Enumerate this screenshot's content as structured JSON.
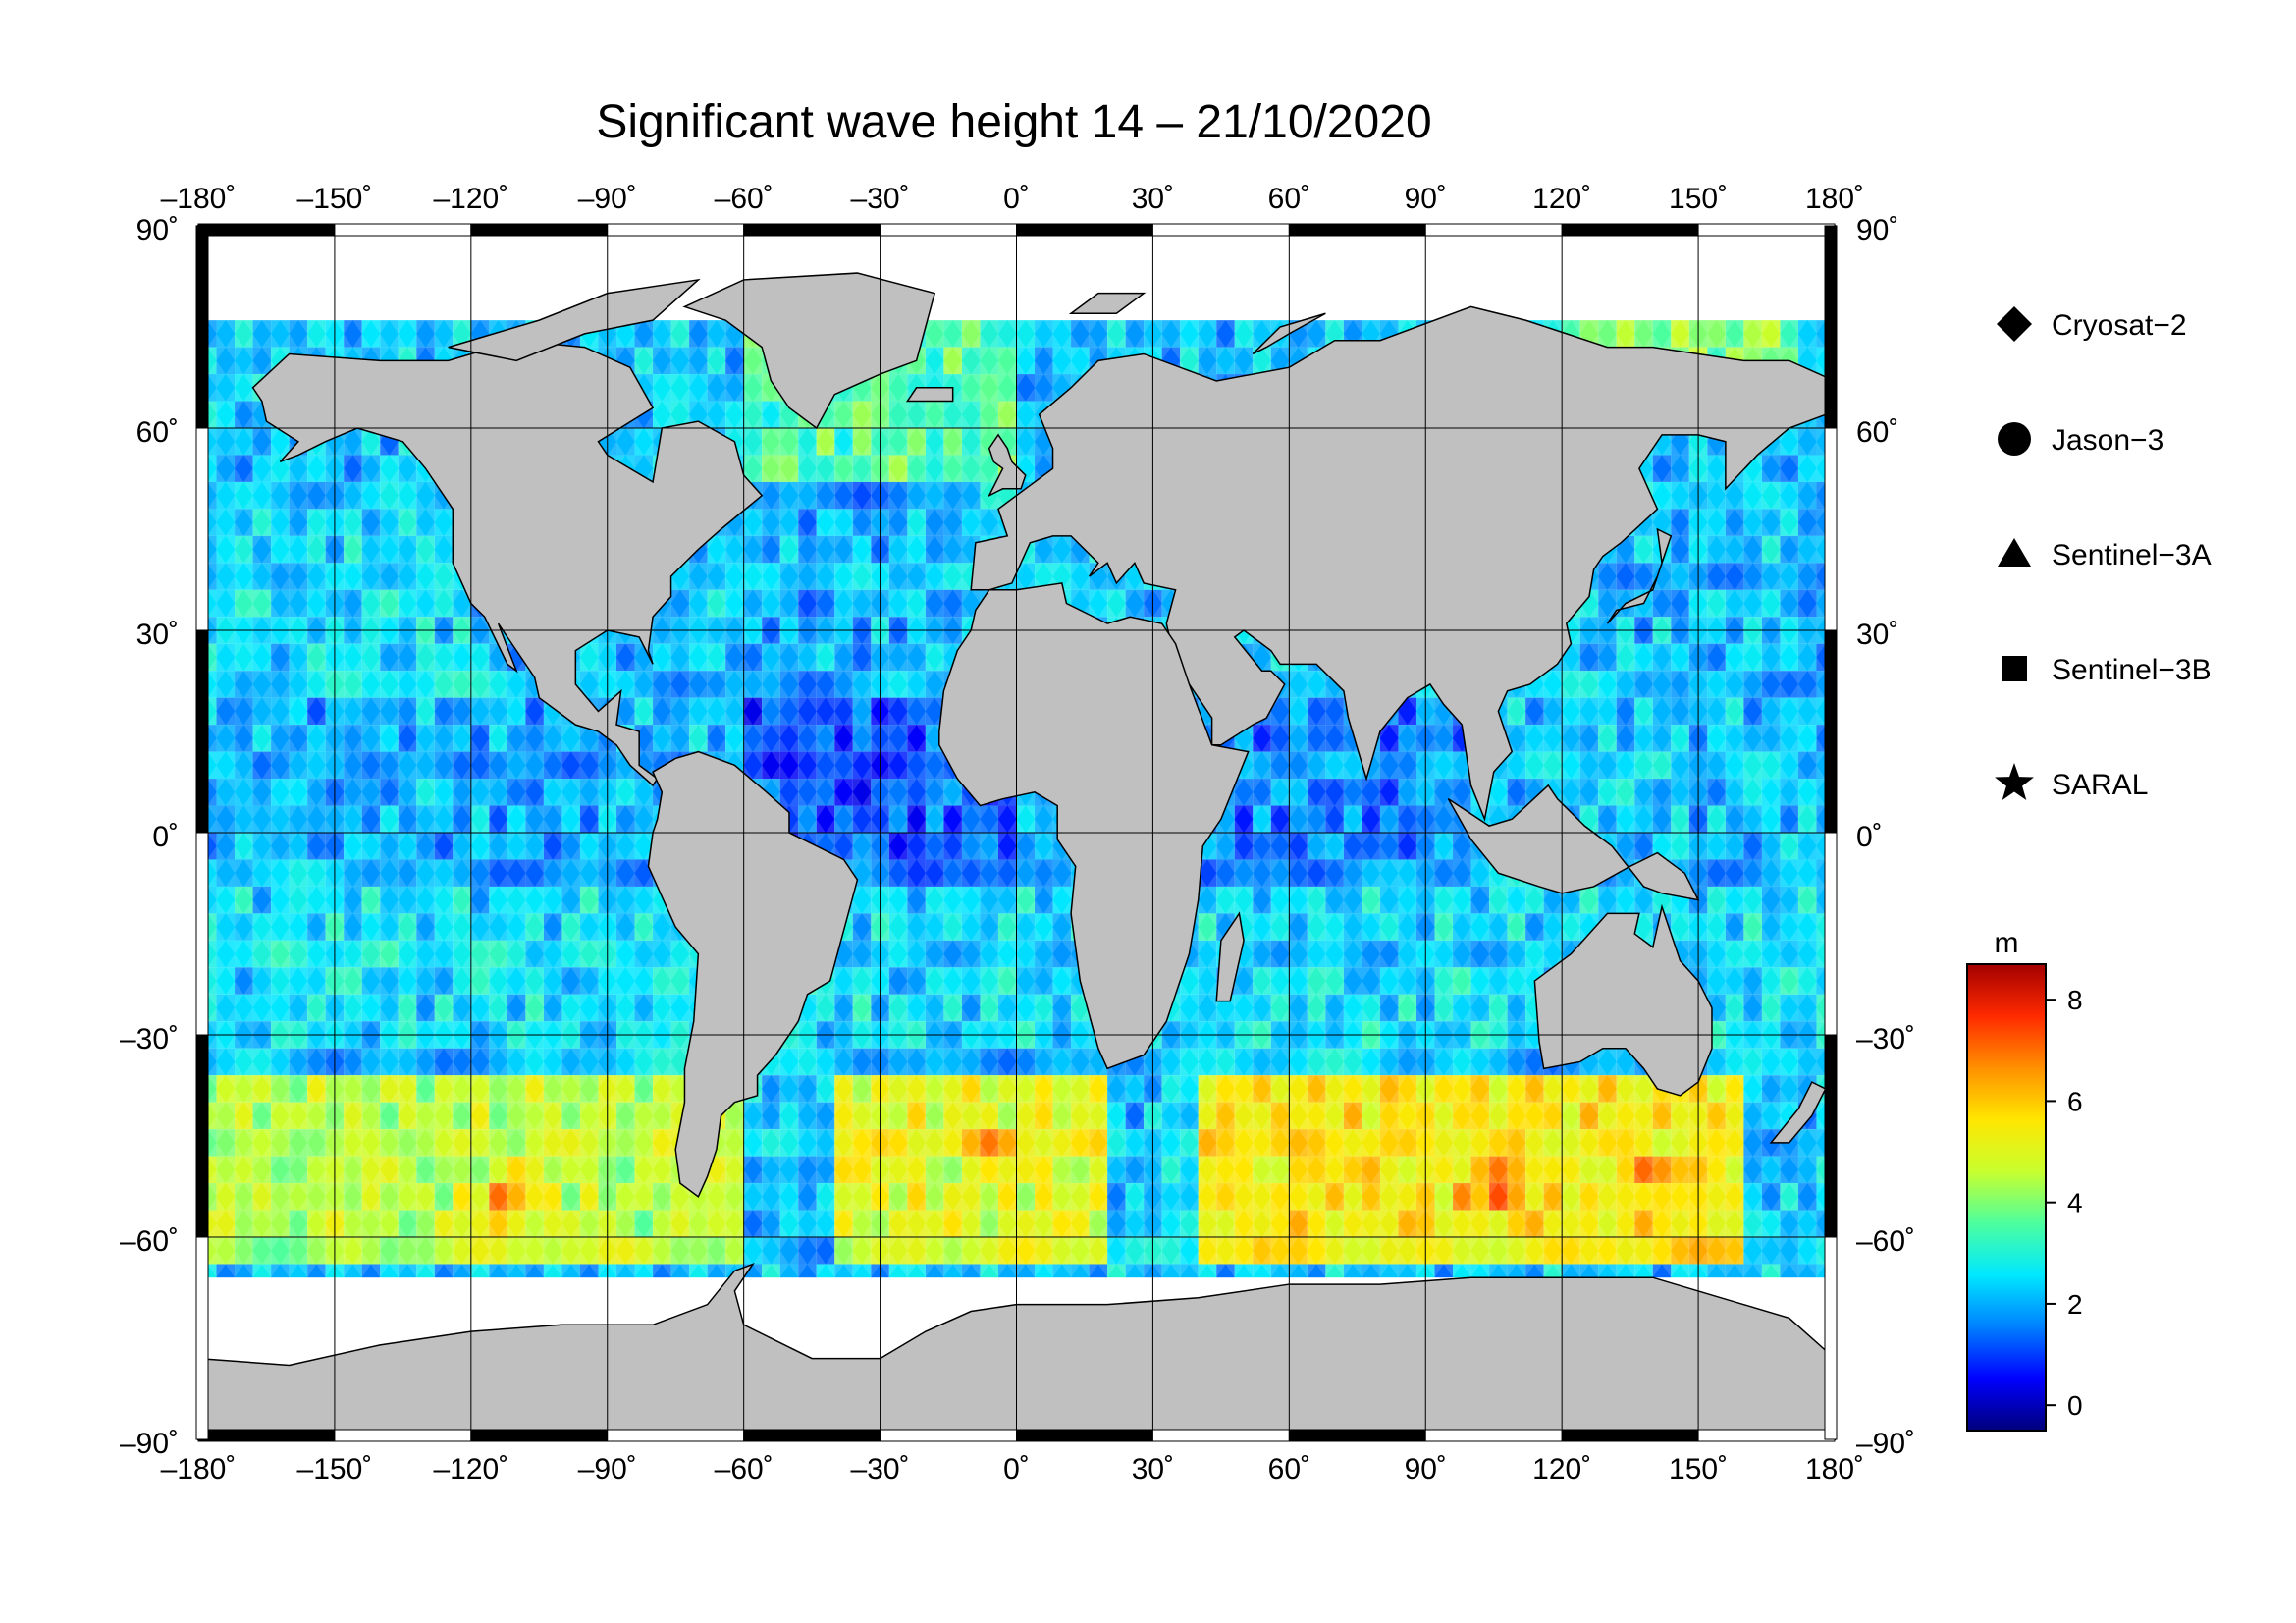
{
  "title": "Significant wave height 14 – 21/10/2020",
  "map": {
    "projection": "plate-carree",
    "longitude_range": [
      -180,
      180
    ],
    "latitude_range": [
      -90,
      90
    ],
    "longitude_ticks": [
      "–180˚",
      "–150˚",
      "–120˚",
      "–90˚",
      "–60˚",
      "–30˚",
      "0˚",
      "30˚",
      "60˚",
      "90˚",
      "120˚",
      "150˚",
      "180˚"
    ],
    "latitude_ticks_left": [
      "90˚",
      "60˚",
      "30˚",
      "0˚",
      "–30˚",
      "–60˚",
      "–90˚"
    ],
    "latitude_ticks_right": [
      "90˚",
      "60˚",
      "30˚",
      "0˚",
      "–30˚",
      "–60˚",
      "–90˚"
    ],
    "grid": true,
    "land_color": "#c0c0c0",
    "ice_color": "#ffffff"
  },
  "legend": {
    "position": "right",
    "items": [
      {
        "symbol": "diamond",
        "label": "Cryosat−2"
      },
      {
        "symbol": "circle",
        "label": "Jason−3"
      },
      {
        "symbol": "triangle",
        "label": "Sentinel−3A"
      },
      {
        "symbol": "square",
        "label": "Sentinel−3B"
      },
      {
        "symbol": "star",
        "label": "SARAL"
      }
    ]
  },
  "colorbar": {
    "unit": "m",
    "ticks": [
      "8",
      "6",
      "4",
      "2",
      "0"
    ],
    "range": [
      -0.5,
      8.7
    ],
    "colors": [
      "#00007a",
      "#0000ff",
      "#0080ff",
      "#00e8ff",
      "#4cff9e",
      "#c8ff2e",
      "#ffe600",
      "#ff9000",
      "#ff2a00",
      "#a30000"
    ]
  },
  "chart_data": {
    "type": "heatmap",
    "title": "Significant wave height 14 – 21/10/2020",
    "variable": "significant wave height",
    "unit": "m",
    "color_range": [
      -0.5,
      8.7
    ],
    "xlim": [
      -180,
      180
    ],
    "ylim": [
      -90,
      90
    ],
    "series": [
      {
        "name": "Cryosat−2"
      },
      {
        "name": "Jason−3"
      },
      {
        "name": "Sentinel−3A"
      },
      {
        "name": "Sentinel−3B"
      },
      {
        "name": "SARAL"
      }
    ],
    "regional_values_m": [
      {
        "lat_band": [
          50,
          80
        ],
        "lon_band": [
          -60,
          0
        ],
        "swh": 3.5
      },
      {
        "lat_band": [
          20,
          50
        ],
        "lon_band": [
          -180,
          -120
        ],
        "swh": 2.5
      },
      {
        "lat_band": [
          20,
          50
        ],
        "lon_band": [
          -60,
          -10
        ],
        "swh": 2.0
      },
      {
        "lat_band": [
          -10,
          20
        ],
        "lon_band": [
          -180,
          -80
        ],
        "swh": 2.0
      },
      {
        "lat_band": [
          -10,
          20
        ],
        "lon_band": [
          -60,
          0
        ],
        "swh": 1.2
      },
      {
        "lat_band": [
          -10,
          20
        ],
        "lon_band": [
          40,
          100
        ],
        "swh": 1.5
      },
      {
        "lat_band": [
          -30,
          -10
        ],
        "lon_band": [
          -180,
          180
        ],
        "swh": 2.5
      },
      {
        "lat_band": [
          -65,
          -35
        ],
        "lon_band": [
          -180,
          -60
        ],
        "swh": 4.5
      },
      {
        "lat_band": [
          -65,
          -35
        ],
        "lon_band": [
          -40,
          20
        ],
        "swh": 5.0
      },
      {
        "lat_band": [
          -65,
          -35
        ],
        "lon_band": [
          40,
          160
        ],
        "swh": 5.5
      },
      {
        "lat_band": [
          70,
          80
        ],
        "lon_band": [
          120,
          170
        ],
        "swh": 4.0
      }
    ],
    "notable_maxima_m": [
      {
        "lon": -112,
        "lat": -55,
        "swh": 7.0
      },
      {
        "lon": -5,
        "lat": -47,
        "swh": 6.5
      },
      {
        "lon": 105,
        "lat": -53,
        "swh": 7.5
      },
      {
        "lon": 140,
        "lat": -50,
        "swh": 7.0
      }
    ]
  }
}
